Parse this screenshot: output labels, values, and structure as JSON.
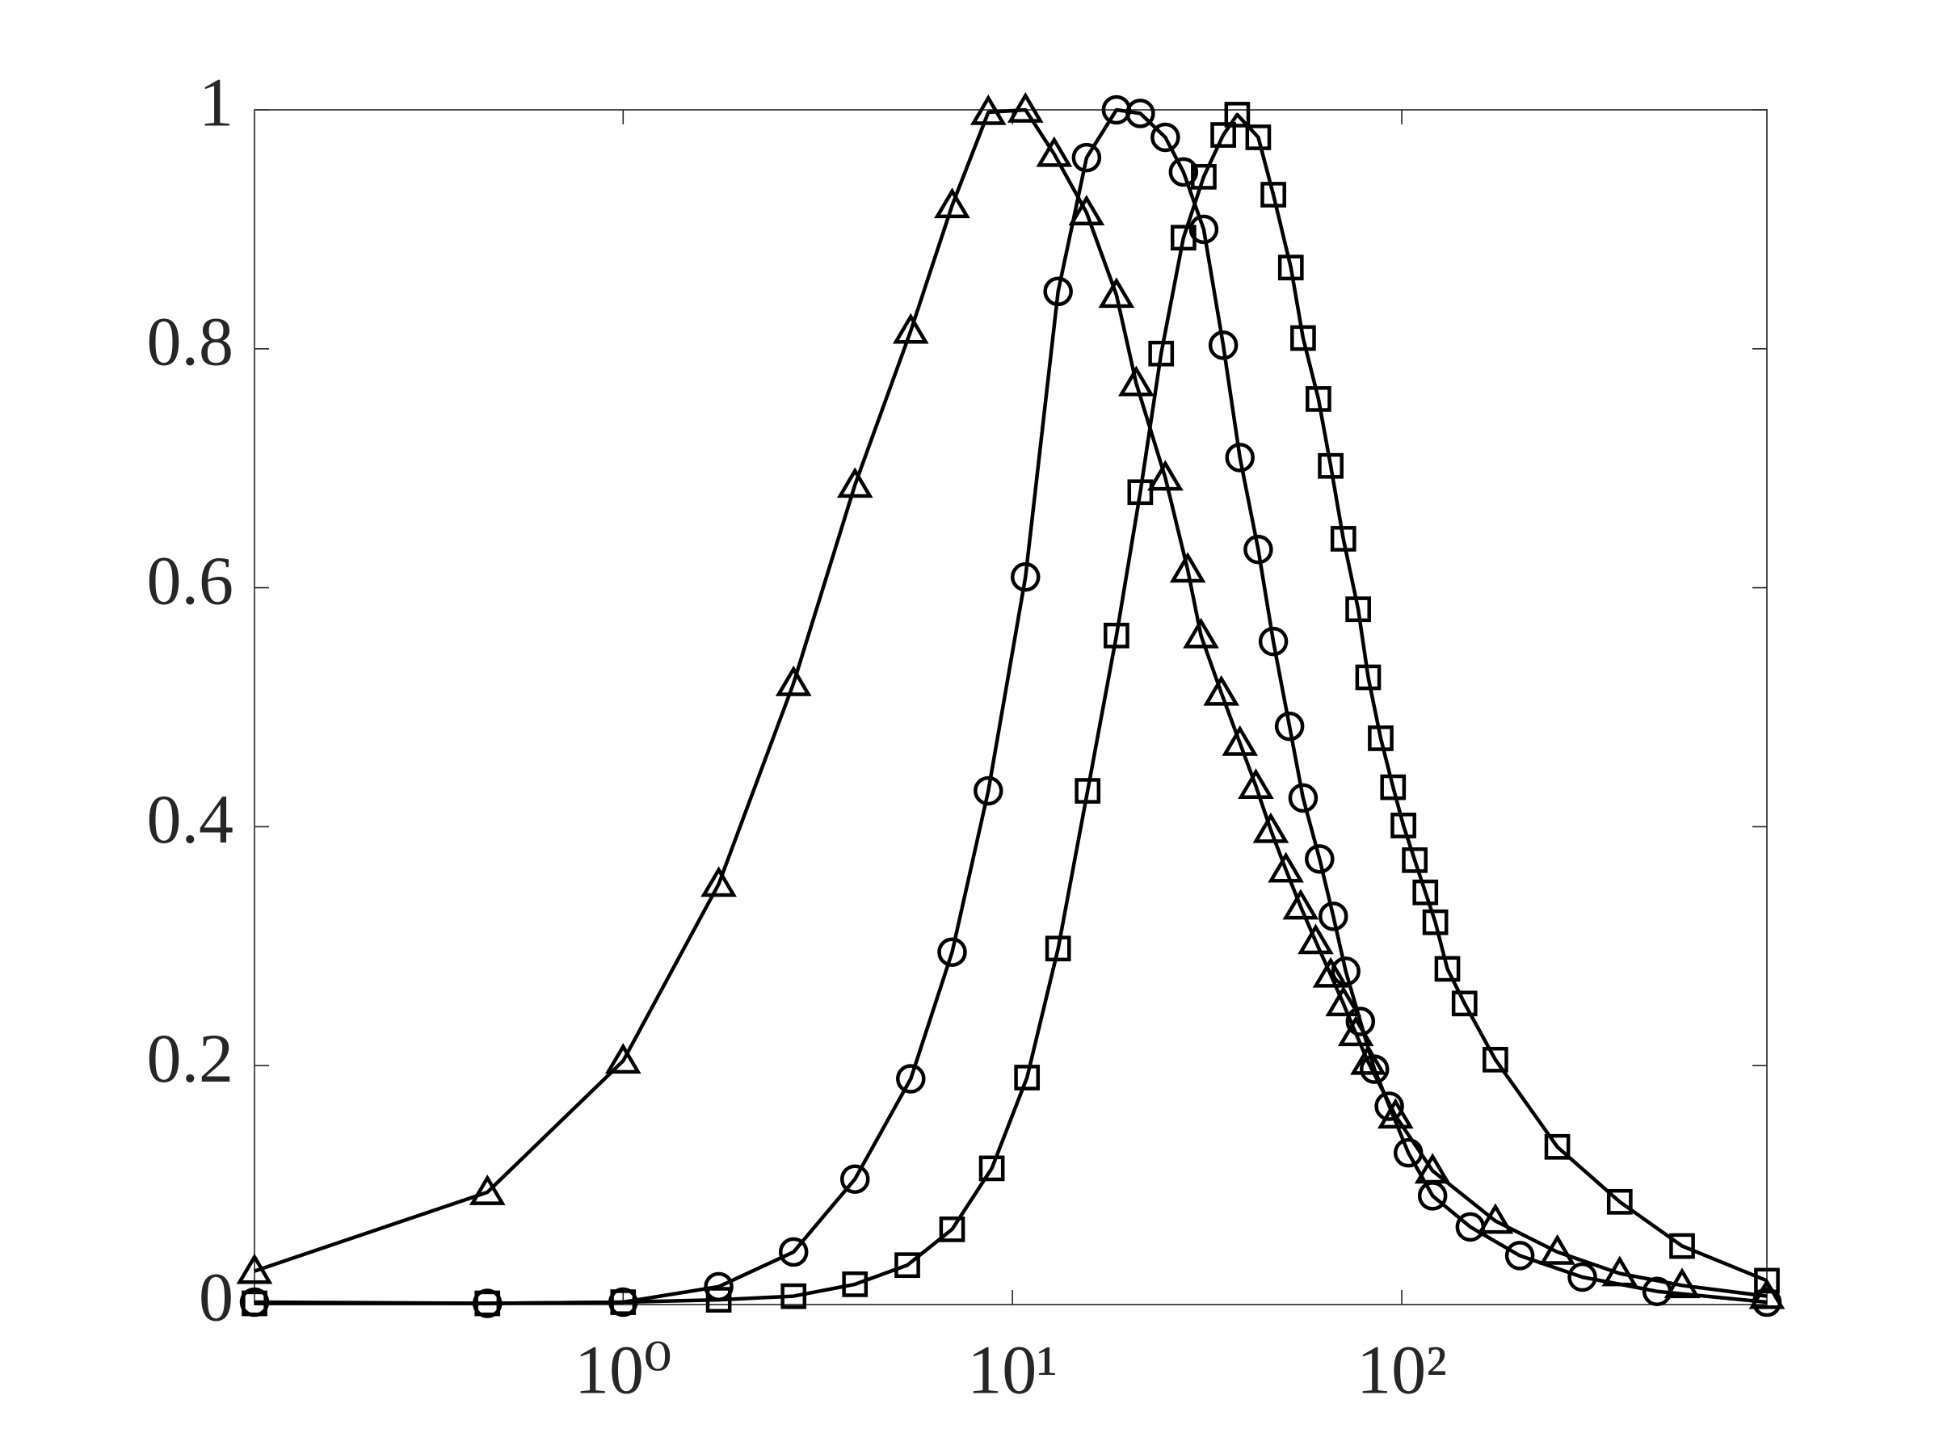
{
  "chart_data": {
    "type": "line",
    "xscale": "log",
    "xlim": [
      0.113,
      867
    ],
    "ylim": [
      0,
      1
    ],
    "xticks": [
      {
        "value": 1,
        "label": "10⁰"
      },
      {
        "value": 10,
        "label": "10¹"
      },
      {
        "value": 100,
        "label": "10²"
      }
    ],
    "yticks": [
      0,
      0.2,
      0.4,
      0.6,
      0.8,
      1
    ],
    "grid": false,
    "series": [
      {
        "marker": "triangle",
        "color": "#000000",
        "x": [
          0.113,
          0.448,
          1,
          1.76,
          2.74,
          3.94,
          5.48,
          7.0,
          8.67,
          10.8,
          12.8,
          15.5,
          18.5,
          20.8,
          24.7,
          28.2,
          30.5,
          34.4,
          38.4,
          42.2,
          46.1,
          50.4,
          55.0,
          60.1,
          65.7,
          70.8,
          76.2,
          82.0,
          96.4,
          120,
          174,
          251,
          363,
          525,
          867
        ],
        "values": [
          0.028,
          0.094,
          0.204,
          0.352,
          0.52,
          0.686,
          0.815,
          0.92,
          0.998,
          1.0,
          0.963,
          0.914,
          0.845,
          0.771,
          0.692,
          0.615,
          0.56,
          0.512,
          0.47,
          0.434,
          0.397,
          0.364,
          0.333,
          0.304,
          0.276,
          0.252,
          0.227,
          0.203,
          0.158,
          0.112,
          0.07,
          0.044,
          0.026,
          0.016,
          0.007
        ]
      },
      {
        "marker": "circle",
        "color": "#000000",
        "x": [
          0.113,
          0.448,
          1,
          1.76,
          2.74,
          3.94,
          5.48,
          7.0,
          8.67,
          10.8,
          13.1,
          15.5,
          18.5,
          21.3,
          24.7,
          27.5,
          31.0,
          34.8,
          38.4,
          42.8,
          46.8,
          51.5,
          55.8,
          61.5,
          66.7,
          71.8,
          78.3,
          85.1,
          92.9,
          104,
          120,
          150,
          201,
          291,
          453,
          867
        ],
        "values": [
          0.002,
          0.001,
          0.002,
          0.015,
          0.044,
          0.105,
          0.189,
          0.295,
          0.43,
          0.609,
          0.848,
          0.96,
          1.0,
          0.997,
          0.977,
          0.948,
          0.9,
          0.803,
          0.709,
          0.632,
          0.555,
          0.484,
          0.424,
          0.373,
          0.325,
          0.279,
          0.237,
          0.197,
          0.166,
          0.127,
          0.091,
          0.065,
          0.041,
          0.023,
          0.011,
          0.002
        ]
      },
      {
        "marker": "square",
        "color": "#000000",
        "x": [
          0.113,
          0.448,
          1,
          1.76,
          2.74,
          3.94,
          5.37,
          7.0,
          8.85,
          10.9,
          13.1,
          15.6,
          18.5,
          21.3,
          24.1,
          27.5,
          31.0,
          34.8,
          37.8,
          42.8,
          46.8,
          51.9,
          55.8,
          61.1,
          65.7,
          70.8,
          77.3,
          82.0,
          88.3,
          95.0,
          101,
          108,
          115,
          122,
          131,
          145,
          174,
          251,
          363,
          525,
          867
        ],
        "values": [
          0.001,
          0.001,
          0.002,
          0.004,
          0.007,
          0.017,
          0.033,
          0.063,
          0.114,
          0.19,
          0.298,
          0.43,
          0.56,
          0.68,
          0.796,
          0.893,
          0.944,
          0.979,
          0.996,
          0.977,
          0.929,
          0.868,
          0.809,
          0.758,
          0.702,
          0.641,
          0.582,
          0.525,
          0.474,
          0.433,
          0.401,
          0.372,
          0.345,
          0.32,
          0.281,
          0.252,
          0.205,
          0.132,
          0.086,
          0.049,
          0.02
        ]
      }
    ]
  }
}
